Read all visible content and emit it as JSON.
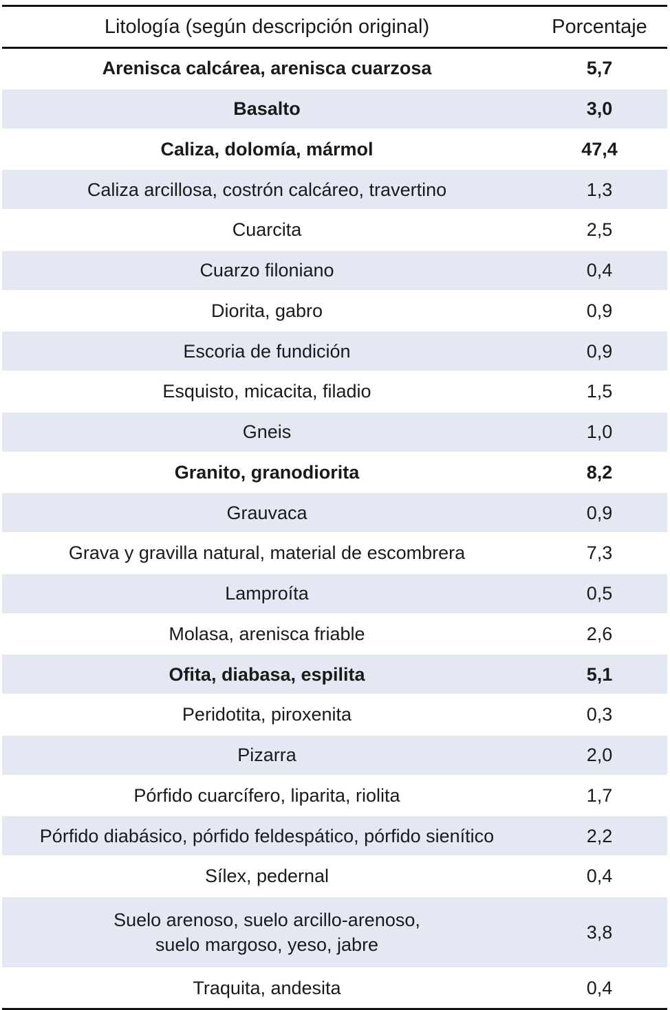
{
  "table": {
    "headers": [
      "Litología (según descripción original)",
      "Porcentaje"
    ],
    "rows": [
      {
        "lines": [
          "Arenisca calcárea, arenisca cuarzosa"
        ],
        "value": "5,7",
        "bold": true
      },
      {
        "lines": [
          "Basalto"
        ],
        "value": "3,0",
        "bold": true
      },
      {
        "lines": [
          "Caliza, dolomía, mármol"
        ],
        "value": "47,4",
        "bold": true
      },
      {
        "lines": [
          "Caliza arcillosa, costrón calcáreo, travertino"
        ],
        "value": "1,3",
        "bold": false
      },
      {
        "lines": [
          "Cuarcita"
        ],
        "value": "2,5",
        "bold": false
      },
      {
        "lines": [
          "Cuarzo filoniano"
        ],
        "value": "0,4",
        "bold": false
      },
      {
        "lines": [
          "Diorita, gabro"
        ],
        "value": "0,9",
        "bold": false
      },
      {
        "lines": [
          "Escoria de fundición"
        ],
        "value": "0,9",
        "bold": false
      },
      {
        "lines": [
          "Esquisto, micacita, filadio"
        ],
        "value": "1,5",
        "bold": false
      },
      {
        "lines": [
          "Gneis"
        ],
        "value": "1,0",
        "bold": false
      },
      {
        "lines": [
          "Granito, granodiorita"
        ],
        "value": "8,2",
        "bold": true
      },
      {
        "lines": [
          "Grauvaca"
        ],
        "value": "0,9",
        "bold": false
      },
      {
        "lines": [
          "Grava y gravilla natural, material de escombrera"
        ],
        "value": "7,3",
        "bold": false
      },
      {
        "lines": [
          "Lamproíta"
        ],
        "value": "0,5",
        "bold": false
      },
      {
        "lines": [
          "Molasa, arenisca friable"
        ],
        "value": "2,6",
        "bold": false
      },
      {
        "lines": [
          "Ofita, diabasa, espilita"
        ],
        "value": "5,1",
        "bold": true
      },
      {
        "lines": [
          "Peridotita, piroxenita"
        ],
        "value": "0,3",
        "bold": false
      },
      {
        "lines": [
          "Pizarra"
        ],
        "value": "2,0",
        "bold": false
      },
      {
        "lines": [
          "Pórfido cuarcífero, liparita, riolita"
        ],
        "value": "1,7",
        "bold": false
      },
      {
        "lines": [
          "Pórfido diabásico, pórfido feldespático, pórfido sienítico"
        ],
        "value": "2,2",
        "bold": false
      },
      {
        "lines": [
          "Sílex, pedernal"
        ],
        "value": "0,4",
        "bold": false
      },
      {
        "lines": [
          "Suelo arenoso, suelo arcillo-arenoso,",
          "suelo margoso, yeso, jabre"
        ],
        "value": "3,8",
        "bold": false
      },
      {
        "lines": [
          "Traquita, andesita"
        ],
        "value": "0,4",
        "bold": false
      }
    ]
  },
  "colors": {
    "row_shade": "#e3e8f2",
    "rule": "#111111",
    "text": "#1a1a1a"
  }
}
